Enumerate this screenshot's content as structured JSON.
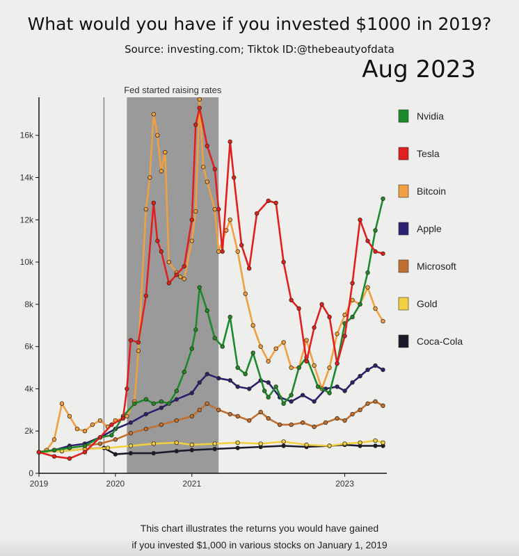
{
  "header": {
    "title": "What would you have if you invested $1000 in 2019?",
    "subtitle": "Source: investing.com;  Tiktok ID:@thebeautyofdata",
    "date": "Aug 2023"
  },
  "footer": {
    "line1": "This chart illustrates the returns you would have gained",
    "line2": "if you invested $1,000 in various stocks on January 1, 2019"
  },
  "chart_data": {
    "type": "line",
    "title": "What would you have if you invested $1000 in 2019?",
    "xlabel": "",
    "ylabel": "",
    "xlim": [
      2019.0,
      2023.55
    ],
    "ylim": [
      0,
      17800
    ],
    "x_ticks": [
      2019,
      2020,
      2021,
      2023
    ],
    "x_tick_labels": [
      "2019",
      "2020",
      "2021",
      "2023"
    ],
    "y_ticks": [
      0,
      2000,
      4000,
      6000,
      8000,
      10000,
      12000,
      14000,
      16000
    ],
    "y_tick_labels": [
      "0",
      "2k",
      "4k",
      "6k",
      "8k",
      "10k",
      "12k",
      "14k",
      "16k"
    ],
    "grid": false,
    "legend_position": "right",
    "annotations": [
      {
        "type": "vertical_line",
        "x": 2019.85
      },
      {
        "type": "shaded_region",
        "x_start": 2020.15,
        "x_end": 2021.35,
        "label": "Fed started raising rates"
      }
    ],
    "series": [
      {
        "name": "Nvidia",
        "color": "#1a8a2a",
        "x": [
          2019.0,
          2019.2,
          2019.4,
          2019.6,
          2019.8,
          2019.95,
          2020.1,
          2020.25,
          2020.4,
          2020.5,
          2020.6,
          2020.7,
          2020.8,
          2020.9,
          2021.0,
          2021.05,
          2021.1,
          2021.2,
          2021.3,
          2021.4,
          2021.5,
          2021.6,
          2021.7,
          2021.8,
          2021.95,
          2022.0,
          2022.1,
          2022.2,
          2022.3,
          2022.4,
          2022.5,
          2022.65,
          2022.8,
          2022.9,
          2023.0,
          2023.1,
          2023.2,
          2023.3,
          2023.4,
          2023.5
        ],
        "values": [
          1000,
          1100,
          1200,
          1300,
          1700,
          1800,
          2700,
          3300,
          3500,
          3300,
          3400,
          3300,
          3900,
          4800,
          5900,
          6800,
          8800,
          7700,
          6400,
          6000,
          7400,
          5000,
          4700,
          5700,
          3900,
          3600,
          4100,
          3300,
          3700,
          5000,
          5500,
          4100,
          3800,
          5200,
          7100,
          7400,
          8000,
          9500,
          11500,
          13000
        ]
      },
      {
        "name": "Tesla",
        "color": "#e02020",
        "x": [
          2019.0,
          2019.2,
          2019.4,
          2019.6,
          2019.8,
          2019.95,
          2020.1,
          2020.15,
          2020.2,
          2020.3,
          2020.4,
          2020.5,
          2020.55,
          2020.6,
          2020.7,
          2020.8,
          2020.9,
          2021.0,
          2021.05,
          2021.1,
          2021.2,
          2021.3,
          2021.35,
          2021.4,
          2021.5,
          2021.55,
          2021.65,
          2021.75,
          2021.85,
          2022.0,
          2022.1,
          2022.2,
          2022.3,
          2022.4,
          2022.5,
          2022.6,
          2022.7,
          2022.8,
          2022.9,
          2023.0,
          2023.1,
          2023.2,
          2023.3,
          2023.4,
          2023.5
        ],
        "values": [
          1000,
          800,
          700,
          1000,
          1700,
          2300,
          2600,
          4000,
          6300,
          6200,
          8400,
          12800,
          11000,
          10500,
          9000,
          9400,
          9800,
          12000,
          16500,
          17300,
          15500,
          14400,
          12500,
          10500,
          15700,
          14000,
          10800,
          9700,
          12300,
          12900,
          12800,
          10000,
          8200,
          7800,
          5300,
          6900,
          8000,
          7400,
          5200,
          6500,
          9000,
          12000,
          11000,
          10500,
          10400
        ]
      },
      {
        "name": "Bitcoin",
        "color": "#f0a040",
        "x": [
          2019.0,
          2019.1,
          2019.2,
          2019.3,
          2019.4,
          2019.5,
          2019.6,
          2019.7,
          2019.8,
          2019.9,
          2020.0,
          2020.1,
          2020.15,
          2020.25,
          2020.3,
          2020.4,
          2020.45,
          2020.5,
          2020.55,
          2020.6,
          2020.65,
          2020.7,
          2020.8,
          2020.85,
          2020.9,
          2021.0,
          2021.05,
          2021.1,
          2021.15,
          2021.2,
          2021.3,
          2021.35,
          2021.45,
          2021.5,
          2021.6,
          2021.7,
          2021.8,
          2021.9,
          2022.0,
          2022.1,
          2022.2,
          2022.3,
          2022.4,
          2022.5,
          2022.6,
          2022.7,
          2022.8,
          2022.9,
          2023.0,
          2023.1,
          2023.2,
          2023.3,
          2023.4,
          2023.5
        ],
        "values": [
          1000,
          1100,
          1600,
          3300,
          2700,
          2100,
          2000,
          2300,
          2500,
          2200,
          2500,
          2600,
          2700,
          3400,
          5800,
          12500,
          14000,
          17000,
          16000,
          14300,
          15200,
          10000,
          9500,
          9300,
          9200,
          11000,
          12400,
          17700,
          14500,
          13800,
          12500,
          10500,
          11500,
          12000,
          10500,
          8500,
          7000,
          6000,
          5300,
          5900,
          6200,
          5000,
          5000,
          6300,
          5100,
          4000,
          5000,
          6600,
          7500,
          8200,
          8000,
          8800,
          7800,
          7200
        ]
      },
      {
        "name": "Apple",
        "color": "#2a2070",
        "x": [
          2019.0,
          2019.2,
          2019.4,
          2019.6,
          2019.8,
          2020.0,
          2020.2,
          2020.4,
          2020.6,
          2020.8,
          2021.0,
          2021.1,
          2021.2,
          2021.35,
          2021.5,
          2021.6,
          2021.75,
          2021.9,
          2022.0,
          2022.15,
          2022.3,
          2022.45,
          2022.6,
          2022.75,
          2022.9,
          2023.0,
          2023.1,
          2023.2,
          2023.3,
          2023.4,
          2023.5
        ],
        "values": [
          1000,
          1100,
          1300,
          1400,
          1700,
          2100,
          2400,
          2800,
          3100,
          3500,
          3800,
          4300,
          4700,
          4500,
          4400,
          4100,
          4000,
          4400,
          4300,
          3600,
          3400,
          3700,
          3400,
          4000,
          4100,
          3900,
          4300,
          4600,
          4900,
          5100,
          4900
        ]
      },
      {
        "name": "Microsoft",
        "color": "#c07030",
        "x": [
          2019.0,
          2019.2,
          2019.4,
          2019.6,
          2019.8,
          2020.0,
          2020.2,
          2020.4,
          2020.6,
          2020.8,
          2021.0,
          2021.1,
          2021.2,
          2021.35,
          2021.5,
          2021.6,
          2021.75,
          2021.9,
          2022.0,
          2022.15,
          2022.3,
          2022.45,
          2022.6,
          2022.75,
          2022.9,
          2023.0,
          2023.1,
          2023.2,
          2023.3,
          2023.4,
          2023.5
        ],
        "values": [
          1000,
          1100,
          1200,
          1300,
          1400,
          1600,
          1900,
          2100,
          2300,
          2500,
          2700,
          3000,
          3300,
          3000,
          2800,
          2700,
          2500,
          2900,
          2600,
          2300,
          2300,
          2400,
          2200,
          2400,
          2600,
          2500,
          2800,
          3000,
          3300,
          3400,
          3200
        ]
      },
      {
        "name": "Gold",
        "color": "#f0d040",
        "x": [
          2019.0,
          2019.3,
          2019.6,
          2019.9,
          2020.2,
          2020.5,
          2020.8,
          2021.0,
          2021.3,
          2021.6,
          2021.9,
          2022.2,
          2022.5,
          2022.8,
          2023.0,
          2023.2,
          2023.4,
          2023.5
        ],
        "values": [
          1000,
          1050,
          1150,
          1200,
          1300,
          1400,
          1450,
          1350,
          1400,
          1450,
          1400,
          1500,
          1350,
          1300,
          1400,
          1450,
          1550,
          1450
        ]
      },
      {
        "name": "Coca-Cola",
        "color": "#1a1a2a",
        "x": [
          2019.0,
          2019.3,
          2019.6,
          2019.85,
          2020.0,
          2020.2,
          2020.5,
          2020.8,
          2021.0,
          2021.3,
          2021.6,
          2021.9,
          2022.2,
          2022.5,
          2022.8,
          2023.0,
          2023.2,
          2023.4,
          2023.5
        ],
        "values": [
          1000,
          1050,
          1150,
          1200,
          900,
          950,
          950,
          1050,
          1100,
          1150,
          1200,
          1250,
          1300,
          1250,
          1300,
          1350,
          1300,
          1300,
          1300
        ]
      }
    ]
  }
}
